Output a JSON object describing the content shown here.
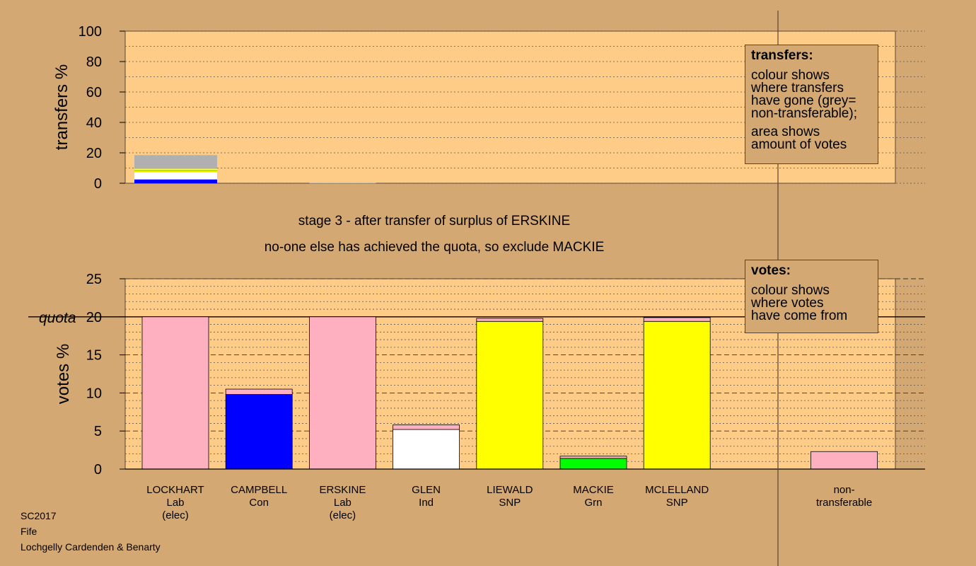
{
  "chart_data": [
    {
      "type": "bar",
      "stacked": true,
      "ylabel": "transfers %",
      "ylim": [
        0,
        100
      ],
      "yticks": [
        0,
        20,
        40,
        60,
        80,
        100
      ],
      "categories": [
        "LOCKHART",
        "CAMPBELL",
        "ERSKINE",
        "GLEN",
        "LIEWALD",
        "MACKIE",
        "MCLELLAND"
      ],
      "note": "colour segments show where the transfers from ERSKINE's surplus went",
      "stacks": [
        {
          "category": "LOCKHART",
          "segments": [
            {
              "to": "Con",
              "color": "#0000ff",
              "value": 2.5
            },
            {
              "to": "Ind",
              "color": "#ffffff",
              "value": 4.5
            },
            {
              "to": "SNP",
              "color": "#ffff00",
              "value": 1.0
            },
            {
              "to": "Grn",
              "color": "#00ff00",
              "value": 0.5
            },
            {
              "to": "SNP",
              "color": "#ffff00",
              "value": 1.0
            },
            {
              "to": "non-transferable",
              "color": "#b0b0b0",
              "value": 9.0
            }
          ]
        },
        {
          "category": "ERSKINE",
          "segments": [
            {
              "to": "non-transferable",
              "color": "#b0b0b0",
              "value": 0.3
            }
          ]
        }
      ]
    },
    {
      "type": "bar",
      "stacked": true,
      "ylabel": "votes %",
      "ylim": [
        0,
        25
      ],
      "yticks": [
        0,
        5,
        10,
        15,
        20,
        25
      ],
      "quota": 20,
      "quota_label": "quota",
      "categories": [
        {
          "lines": [
            "LOCKHART",
            "Lab",
            "(elec)"
          ]
        },
        {
          "lines": [
            "CAMPBELL",
            "Con"
          ]
        },
        {
          "lines": [
            "ERSKINE",
            "Lab",
            "(elec)"
          ]
        },
        {
          "lines": [
            "GLEN",
            "Ind"
          ]
        },
        {
          "lines": [
            "LIEWALD",
            "SNP"
          ]
        },
        {
          "lines": [
            "MACKIE",
            "Grn"
          ]
        },
        {
          "lines": [
            "MCLELLAND",
            "SNP"
          ]
        },
        {
          "lines": []
        },
        {
          "lines": [
            "non-",
            "transferable"
          ]
        }
      ],
      "stacks": [
        [
          {
            "from": "Lab",
            "color": "#ffb0c0",
            "value": 20.0
          }
        ],
        [
          {
            "from": "Con",
            "color": "#0000ff",
            "value": 9.8
          },
          {
            "from": "Lab",
            "color": "#ffb0c0",
            "value": 0.7
          }
        ],
        [
          {
            "from": "Lab",
            "color": "#ffb0c0",
            "value": 20.0
          }
        ],
        [
          {
            "from": "Ind",
            "color": "#ffffff",
            "value": 5.2
          },
          {
            "from": "Lab",
            "color": "#ffb0c0",
            "value": 0.6
          }
        ],
        [
          {
            "from": "SNP",
            "color": "#ffff00",
            "value": 19.4
          },
          {
            "from": "Lab",
            "color": "#ffb0c0",
            "value": 0.4
          }
        ],
        [
          {
            "from": "Grn",
            "color": "#00ff00",
            "value": 1.4
          },
          {
            "from": "Lab",
            "color": "#ffb0c0",
            "value": 0.3
          }
        ],
        [
          {
            "from": "SNP",
            "color": "#ffff00",
            "value": 19.4
          },
          {
            "from": "Lab",
            "color": "#ffb0c0",
            "value": 0.5
          }
        ],
        [],
        [
          {
            "from": "Lab",
            "color": "#ffb0c0",
            "value": 2.3
          }
        ]
      ]
    }
  ],
  "stage_text": {
    "line1": "stage 3 - after transfer of surplus of ERSKINE",
    "line2": "no-one else has achieved the quota, so exclude MACKIE"
  },
  "transfers_legend": {
    "title": "transfers:",
    "lines1": [
      "colour shows",
      "where transfers",
      "have gone (grey=",
      "non-transferable);"
    ],
    "lines2": [
      "area shows",
      "amount of votes"
    ]
  },
  "votes_legend": {
    "title": "votes:",
    "lines": [
      "colour shows",
      "where votes",
      "have come from"
    ]
  },
  "footer": {
    "line1": "SC2017",
    "line2": "Fife",
    "line3": "Lochgelly Cardenden & Benarty"
  },
  "colors": {
    "background": "#d4a873",
    "plot_background": "#ffcc88",
    "party_Lab": "#ffb0c0",
    "party_Con": "#0000ff",
    "party_Ind": "#ffffff",
    "party_SNP": "#ffff00",
    "party_Grn": "#00ff00",
    "non_transferable": "#b0b0b0"
  }
}
